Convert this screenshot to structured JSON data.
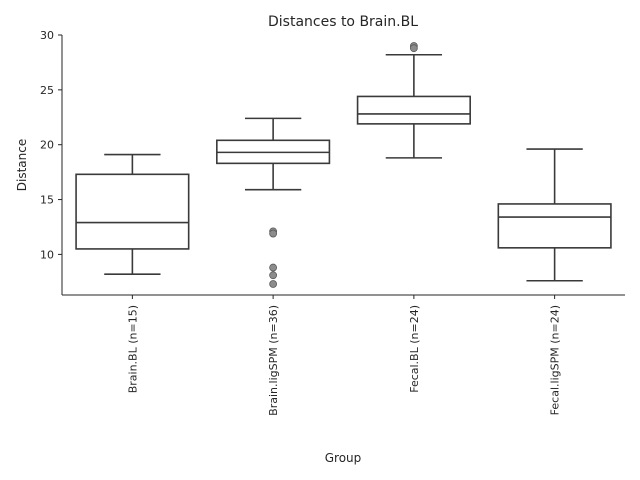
{
  "chart_data": {
    "type": "boxplot",
    "title": "Distances to Brain.BL",
    "xlabel": "Group",
    "ylabel": "Distance",
    "ylim": [
      6.3,
      30.0
    ],
    "yticks": [
      10,
      15,
      20,
      25,
      30
    ],
    "grid": false,
    "categories": [
      "Brain.BL (n=15)",
      "Brain.ligSPM (n=36)",
      "Fecal.BL (n=24)",
      "Fecal.ligSPM (n=24)"
    ],
    "boxes": [
      {
        "category": "Brain.BL (n=15)",
        "whislo": 8.2,
        "q1": 10.5,
        "med": 12.9,
        "q3": 17.3,
        "whishi": 19.1,
        "fliers": []
      },
      {
        "category": "Brain.ligSPM (n=36)",
        "whislo": 15.9,
        "q1": 18.3,
        "med": 19.3,
        "q3": 20.4,
        "whishi": 22.4,
        "fliers": [
          12.1,
          11.9,
          8.8,
          8.1,
          7.3
        ]
      },
      {
        "category": "Fecal.BL (n=24)",
        "whislo": 18.8,
        "q1": 21.9,
        "med": 22.8,
        "q3": 24.4,
        "whishi": 28.2,
        "fliers": [
          29.0,
          28.8
        ]
      },
      {
        "category": "Fecal.ligSPM (n=24)",
        "whislo": 7.6,
        "q1": 10.6,
        "med": 13.4,
        "q3": 14.6,
        "whishi": 19.6,
        "fliers": []
      }
    ],
    "colors": {
      "box_edge": "#3a3a3a",
      "box_fill": "#ffffff",
      "flier": "#8c8c8c",
      "text": "#262626"
    }
  }
}
